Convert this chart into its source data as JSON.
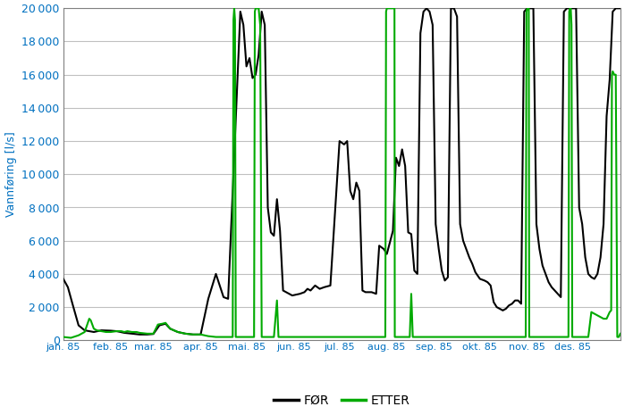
{
  "title": "",
  "ylabel": "Vannføring [l/s]",
  "xlabel": "",
  "xlim": [
    0,
    365
  ],
  "ylim": [
    0,
    20000
  ],
  "yticks": [
    0,
    2000,
    4000,
    6000,
    8000,
    10000,
    12000,
    14000,
    16000,
    18000,
    20000
  ],
  "month_labels": [
    "jan. 85",
    "feb. 85",
    "mar. 85",
    "apr. 85",
    "mai. 85",
    "jun. 85",
    "jul. 85",
    "aug. 85",
    "sep. 85",
    "okt. 85",
    "nov. 85",
    "des. 85"
  ],
  "month_positions": [
    0,
    31,
    59,
    90,
    120,
    151,
    181,
    212,
    243,
    273,
    304,
    334
  ],
  "line_color_for": "#000000",
  "line_color_etter": "#00aa00",
  "legend_labels": [
    "FØR",
    "ETTER"
  ],
  "background_color": "#ffffff",
  "plot_bg_color": "#ffffff",
  "grid_color": "#c0c0c0",
  "tick_label_color": "#0070C0",
  "ylabel_color": "#0070C0",
  "spine_color": "#808080",
  "for_data": [
    [
      0,
      3700
    ],
    [
      3,
      3200
    ],
    [
      6,
      2200
    ],
    [
      10,
      900
    ],
    [
      14,
      600
    ],
    [
      20,
      500
    ],
    [
      25,
      600
    ],
    [
      31,
      580
    ],
    [
      35,
      550
    ],
    [
      40,
      450
    ],
    [
      45,
      400
    ],
    [
      50,
      350
    ],
    [
      55,
      350
    ],
    [
      59,
      380
    ],
    [
      63,
      900
    ],
    [
      67,
      1000
    ],
    [
      70,
      700
    ],
    [
      75,
      500
    ],
    [
      80,
      400
    ],
    [
      85,
      350
    ],
    [
      90,
      350
    ],
    [
      95,
      2500
    ],
    [
      100,
      4000
    ],
    [
      105,
      2600
    ],
    [
      108,
      2500
    ],
    [
      112,
      11200
    ],
    [
      116,
      19800
    ],
    [
      118,
      19000
    ],
    [
      120,
      16500
    ],
    [
      122,
      17000
    ],
    [
      124,
      15800
    ],
    [
      126,
      16000
    ],
    [
      128,
      17200
    ],
    [
      130,
      19800
    ],
    [
      132,
      19000
    ],
    [
      134,
      8000
    ],
    [
      136,
      6500
    ],
    [
      138,
      6300
    ],
    [
      140,
      8500
    ],
    [
      142,
      6600
    ],
    [
      144,
      3000
    ],
    [
      146,
      2900
    ],
    [
      150,
      2700
    ],
    [
      155,
      2800
    ],
    [
      158,
      2900
    ],
    [
      160,
      3100
    ],
    [
      162,
      3000
    ],
    [
      165,
      3300
    ],
    [
      168,
      3100
    ],
    [
      171,
      3200
    ],
    [
      175,
      3300
    ],
    [
      181,
      12000
    ],
    [
      184,
      11800
    ],
    [
      186,
      12000
    ],
    [
      188,
      9000
    ],
    [
      190,
      8500
    ],
    [
      192,
      9500
    ],
    [
      194,
      9000
    ],
    [
      196,
      3000
    ],
    [
      198,
      2900
    ],
    [
      202,
      2900
    ],
    [
      205,
      2800
    ],
    [
      207,
      5700
    ],
    [
      210,
      5500
    ],
    [
      212,
      5200
    ],
    [
      214,
      5900
    ],
    [
      216,
      6600
    ],
    [
      218,
      11000
    ],
    [
      220,
      10500
    ],
    [
      222,
      11500
    ],
    [
      224,
      10500
    ],
    [
      226,
      6500
    ],
    [
      228,
      6400
    ],
    [
      230,
      4200
    ],
    [
      232,
      4000
    ],
    [
      234,
      18500
    ],
    [
      236,
      19800
    ],
    [
      238,
      20000
    ],
    [
      240,
      19800
    ],
    [
      242,
      19000
    ],
    [
      244,
      7000
    ],
    [
      246,
      5500
    ],
    [
      248,
      4200
    ],
    [
      250,
      3600
    ],
    [
      252,
      3800
    ],
    [
      254,
      20000
    ],
    [
      256,
      20000
    ],
    [
      258,
      19500
    ],
    [
      260,
      7000
    ],
    [
      262,
      6000
    ],
    [
      264,
      5500
    ],
    [
      266,
      5000
    ],
    [
      268,
      4600
    ],
    [
      270,
      4100
    ],
    [
      273,
      3700
    ],
    [
      276,
      3600
    ],
    [
      278,
      3500
    ],
    [
      280,
      3300
    ],
    [
      282,
      2300
    ],
    [
      284,
      2000
    ],
    [
      286,
      1900
    ],
    [
      288,
      1800
    ],
    [
      290,
      1900
    ],
    [
      292,
      2100
    ],
    [
      294,
      2200
    ],
    [
      296,
      2400
    ],
    [
      298,
      2400
    ],
    [
      300,
      2200
    ],
    [
      302,
      19800
    ],
    [
      304,
      20000
    ],
    [
      306,
      20000
    ],
    [
      308,
      20000
    ],
    [
      310,
      7000
    ],
    [
      312,
      5500
    ],
    [
      314,
      4500
    ],
    [
      316,
      4000
    ],
    [
      318,
      3500
    ],
    [
      320,
      3200
    ],
    [
      322,
      3000
    ],
    [
      324,
      2800
    ],
    [
      326,
      2600
    ],
    [
      328,
      19800
    ],
    [
      330,
      20000
    ],
    [
      332,
      20000
    ],
    [
      334,
      20000
    ],
    [
      336,
      20000
    ],
    [
      338,
      8000
    ],
    [
      340,
      7000
    ],
    [
      342,
      5000
    ],
    [
      344,
      4000
    ],
    [
      346,
      3800
    ],
    [
      348,
      3700
    ],
    [
      350,
      4000
    ],
    [
      352,
      5000
    ],
    [
      354,
      7000
    ],
    [
      356,
      13500
    ],
    [
      358,
      15700
    ],
    [
      360,
      19800
    ],
    [
      362,
      20000
    ],
    [
      364,
      20000
    ],
    [
      365,
      20000
    ]
  ],
  "etter_data": [
    [
      0,
      200
    ],
    [
      5,
      150
    ],
    [
      10,
      300
    ],
    [
      14,
      500
    ],
    [
      17,
      1300
    ],
    [
      18,
      1200
    ],
    [
      20,
      700
    ],
    [
      22,
      600
    ],
    [
      25,
      550
    ],
    [
      28,
      500
    ],
    [
      31,
      500
    ],
    [
      35,
      550
    ],
    [
      38,
      550
    ],
    [
      40,
      500
    ],
    [
      42,
      550
    ],
    [
      45,
      500
    ],
    [
      48,
      500
    ],
    [
      50,
      450
    ],
    [
      55,
      400
    ],
    [
      59,
      400
    ],
    [
      62,
      950
    ],
    [
      65,
      1000
    ],
    [
      67,
      1050
    ],
    [
      70,
      700
    ],
    [
      75,
      500
    ],
    [
      80,
      400
    ],
    [
      85,
      350
    ],
    [
      90,
      350
    ],
    [
      95,
      250
    ],
    [
      100,
      200
    ],
    [
      105,
      200
    ],
    [
      108,
      200
    ],
    [
      111,
      200
    ],
    [
      111.5,
      19300
    ],
    [
      112,
      20000
    ],
    [
      112.5,
      19300
    ],
    [
      113,
      200
    ],
    [
      115,
      200
    ],
    [
      116,
      200
    ],
    [
      117,
      200
    ],
    [
      120,
      200
    ],
    [
      122,
      200
    ],
    [
      124,
      200
    ],
    [
      125,
      200
    ],
    [
      125.5,
      19800
    ],
    [
      126,
      20000
    ],
    [
      126.5,
      20000
    ],
    [
      127,
      20000
    ],
    [
      128,
      20000
    ],
    [
      129,
      19000
    ],
    [
      130,
      200
    ],
    [
      132,
      200
    ],
    [
      134,
      200
    ],
    [
      136,
      200
    ],
    [
      138,
      200
    ],
    [
      140,
      2400
    ],
    [
      141,
      200
    ],
    [
      142,
      200
    ],
    [
      146,
      200
    ],
    [
      150,
      200
    ],
    [
      155,
      200
    ],
    [
      158,
      200
    ],
    [
      160,
      200
    ],
    [
      162,
      200
    ],
    [
      165,
      200
    ],
    [
      168,
      200
    ],
    [
      171,
      200
    ],
    [
      175,
      200
    ],
    [
      181,
      200
    ],
    [
      184,
      200
    ],
    [
      186,
      200
    ],
    [
      188,
      200
    ],
    [
      190,
      200
    ],
    [
      192,
      200
    ],
    [
      194,
      200
    ],
    [
      196,
      200
    ],
    [
      198,
      200
    ],
    [
      202,
      200
    ],
    [
      205,
      200
    ],
    [
      207,
      200
    ],
    [
      210,
      200
    ],
    [
      211,
      200
    ],
    [
      211.5,
      19800
    ],
    [
      212,
      20000
    ],
    [
      212.5,
      20000
    ],
    [
      213,
      20000
    ],
    [
      213.5,
      20000
    ],
    [
      214,
      20000
    ],
    [
      214.5,
      20000
    ],
    [
      215,
      20000
    ],
    [
      215.5,
      20000
    ],
    [
      216,
      20000
    ],
    [
      216.5,
      20000
    ],
    [
      217,
      20000
    ],
    [
      217.2,
      200
    ],
    [
      218,
      200
    ],
    [
      220,
      200
    ],
    [
      222,
      200
    ],
    [
      224,
      200
    ],
    [
      226,
      200
    ],
    [
      227,
      200
    ],
    [
      228,
      2800
    ],
    [
      229,
      200
    ],
    [
      230,
      200
    ],
    [
      232,
      200
    ],
    [
      234,
      200
    ],
    [
      236,
      200
    ],
    [
      238,
      200
    ],
    [
      240,
      200
    ],
    [
      242,
      200
    ],
    [
      244,
      200
    ],
    [
      246,
      200
    ],
    [
      248,
      200
    ],
    [
      250,
      200
    ],
    [
      252,
      200
    ],
    [
      254,
      200
    ],
    [
      256,
      200
    ],
    [
      258,
      200
    ],
    [
      260,
      200
    ],
    [
      262,
      200
    ],
    [
      264,
      200
    ],
    [
      266,
      200
    ],
    [
      268,
      200
    ],
    [
      270,
      200
    ],
    [
      273,
      200
    ],
    [
      276,
      200
    ],
    [
      278,
      200
    ],
    [
      280,
      200
    ],
    [
      282,
      200
    ],
    [
      284,
      200
    ],
    [
      286,
      200
    ],
    [
      288,
      200
    ],
    [
      290,
      200
    ],
    [
      292,
      200
    ],
    [
      294,
      200
    ],
    [
      296,
      200
    ],
    [
      298,
      200
    ],
    [
      300,
      200
    ],
    [
      302,
      200
    ],
    [
      303,
      200
    ],
    [
      303.5,
      19800
    ],
    [
      304,
      20000
    ],
    [
      304.5,
      20000
    ],
    [
      305,
      20000
    ],
    [
      305.3,
      200
    ],
    [
      306,
      200
    ],
    [
      308,
      200
    ],
    [
      310,
      200
    ],
    [
      312,
      200
    ],
    [
      314,
      200
    ],
    [
      316,
      200
    ],
    [
      318,
      200
    ],
    [
      320,
      200
    ],
    [
      322,
      200
    ],
    [
      324,
      200
    ],
    [
      326,
      200
    ],
    [
      328,
      200
    ],
    [
      330,
      200
    ],
    [
      331,
      200
    ],
    [
      331.5,
      19800
    ],
    [
      332,
      20000
    ],
    [
      332.5,
      20000
    ],
    [
      333,
      19000
    ],
    [
      333.5,
      200
    ],
    [
      334,
      200
    ],
    [
      336,
      200
    ],
    [
      338,
      200
    ],
    [
      340,
      200
    ],
    [
      342,
      200
    ],
    [
      344,
      200
    ],
    [
      346,
      1700
    ],
    [
      348,
      1600
    ],
    [
      350,
      1500
    ],
    [
      352,
      1400
    ],
    [
      354,
      1300
    ],
    [
      356,
      1300
    ],
    [
      358,
      1700
    ],
    [
      359,
      1800
    ],
    [
      359.5,
      16000
    ],
    [
      360,
      16200
    ],
    [
      361,
      16000
    ],
    [
      362,
      16000
    ],
    [
      363,
      200
    ],
    [
      364,
      200
    ],
    [
      365,
      400
    ]
  ]
}
